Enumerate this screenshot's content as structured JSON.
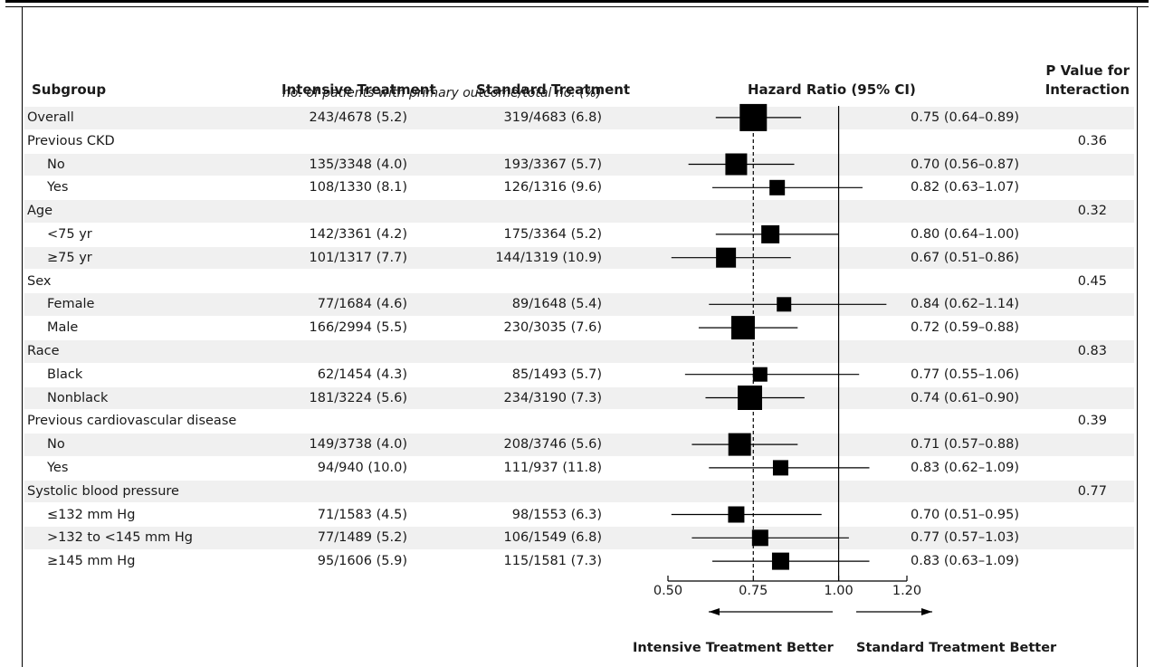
{
  "header": {
    "subgroup": "Subgroup",
    "intensive": "Intensive Treatment",
    "standard": "Standard Treatment",
    "hazard_ratio": "Hazard Ratio (95% CI)",
    "p_value_line1": "P Value for",
    "p_value_line2": "Interaction",
    "subheader": "no. of patients with primary outcome/total no. (%)"
  },
  "colors": {
    "shade": "#f0f0f0",
    "marker": "#000000"
  },
  "chart_data": {
    "type": "forest",
    "xlim": [
      0.5,
      1.2
    ],
    "reference_line": 1.0,
    "overall_line": 0.75,
    "x_ticks": [
      {
        "value": 0.5,
        "label": "0.50"
      },
      {
        "value": 0.75,
        "label": "0.75"
      },
      {
        "value": 1.0,
        "label": "1.00"
      },
      {
        "value": 1.2,
        "label": "1.20"
      }
    ],
    "favors_left": "Intensive Treatment Better",
    "favors_right": "Standard Treatment Better",
    "rows": [
      {
        "label": "Overall",
        "level": 0,
        "shaded": true,
        "intensive": "243/4678 (5.2)",
        "standard": "319/4683 (6.8)",
        "hr": 0.75,
        "lo": 0.64,
        "hi": 0.89,
        "hr_text": "0.75 (0.64–0.89)",
        "p": "",
        "size": 30
      },
      {
        "label": "Previous CKD",
        "level": 0,
        "shaded": false,
        "p": "0.36"
      },
      {
        "label": "No",
        "level": 1,
        "shaded": true,
        "intensive": "135/3348 (4.0)",
        "standard": "193/3367 (5.7)",
        "hr": 0.7,
        "lo": 0.56,
        "hi": 0.87,
        "hr_text": "0.70 (0.56–0.87)",
        "p": "",
        "size": 24
      },
      {
        "label": "Yes",
        "level": 1,
        "shaded": false,
        "intensive": "108/1330 (8.1)",
        "standard": "126/1316 (9.6)",
        "hr": 0.82,
        "lo": 0.63,
        "hi": 1.07,
        "hr_text": "0.82 (0.63–1.07)",
        "p": "",
        "size": 17
      },
      {
        "label": "Age",
        "level": 0,
        "shaded": true,
        "p": "0.32"
      },
      {
        "label": "<75 yr",
        "level": 1,
        "shaded": false,
        "intensive": "142/3361 (4.2)",
        "standard": "175/3364 (5.2)",
        "hr": 0.8,
        "lo": 0.64,
        "hi": 1.0,
        "hr_text": "0.80 (0.64–1.00)",
        "p": "",
        "size": 20
      },
      {
        "label": "≥75 yr",
        "level": 1,
        "shaded": true,
        "intensive": "101/1317 (7.7)",
        "standard": "144/1319 (10.9)",
        "hr": 0.67,
        "lo": 0.51,
        "hi": 0.86,
        "hr_text": "0.67 (0.51–0.86)",
        "p": "",
        "size": 22
      },
      {
        "label": "Sex",
        "level": 0,
        "shaded": false,
        "p": "0.45"
      },
      {
        "label": "Female",
        "level": 1,
        "shaded": true,
        "intensive": "77/1684 (4.6)",
        "standard": "89/1648 (5.4)",
        "hr": 0.84,
        "lo": 0.62,
        "hi": 1.14,
        "hr_text": "0.84 (0.62–1.14)",
        "p": "",
        "size": 16
      },
      {
        "label": "Male",
        "level": 1,
        "shaded": false,
        "intensive": "166/2994 (5.5)",
        "standard": "230/3035 (7.6)",
        "hr": 0.72,
        "lo": 0.59,
        "hi": 0.88,
        "hr_text": "0.72 (0.59–0.88)",
        "p": "",
        "size": 26
      },
      {
        "label": "Race",
        "level": 0,
        "shaded": true,
        "p": "0.83"
      },
      {
        "label": "Black",
        "level": 1,
        "shaded": false,
        "intensive": "62/1454 (4.3)",
        "standard": "85/1493 (5.7)",
        "hr": 0.77,
        "lo": 0.55,
        "hi": 1.06,
        "hr_text": "0.77 (0.55–1.06)",
        "p": "",
        "size": 16
      },
      {
        "label": "Nonblack",
        "level": 1,
        "shaded": true,
        "intensive": "181/3224 (5.6)",
        "standard": "234/3190 (7.3)",
        "hr": 0.74,
        "lo": 0.61,
        "hi": 0.9,
        "hr_text": "0.74 (0.61–0.90)",
        "p": "",
        "size": 27
      },
      {
        "label": "Previous cardiovascular disease",
        "level": 0,
        "shaded": false,
        "p": "0.39"
      },
      {
        "label": "No",
        "level": 1,
        "shaded": true,
        "intensive": "149/3738 (4.0)",
        "standard": "208/3746 (5.6)",
        "hr": 0.71,
        "lo": 0.57,
        "hi": 0.88,
        "hr_text": "0.71 (0.57–0.88)",
        "p": "",
        "size": 25
      },
      {
        "label": "Yes",
        "level": 1,
        "shaded": false,
        "intensive": "94/940 (10.0)",
        "standard": "111/937 (11.8)",
        "hr": 0.83,
        "lo": 0.62,
        "hi": 1.09,
        "hr_text": "0.83 (0.62–1.09)",
        "p": "",
        "size": 17
      },
      {
        "label": "Systolic blood pressure",
        "level": 0,
        "shaded": true,
        "p": "0.77"
      },
      {
        "label": "≤132 mm Hg",
        "level": 1,
        "shaded": false,
        "intensive": "71/1583 (4.5)",
        "standard": "98/1553 (6.3)",
        "hr": 0.7,
        "lo": 0.51,
        "hi": 0.95,
        "hr_text": "0.70 (0.51–0.95)",
        "p": "",
        "size": 18
      },
      {
        "label": ">132 to <145 mm Hg",
        "level": 1,
        "shaded": true,
        "intensive": "77/1489 (5.2)",
        "standard": "106/1549 (6.8)",
        "hr": 0.77,
        "lo": 0.57,
        "hi": 1.03,
        "hr_text": "0.77 (0.57–1.03)",
        "p": "",
        "size": 18
      },
      {
        "label": "≥145 mm Hg",
        "level": 1,
        "shaded": false,
        "intensive": "95/1606 (5.9)",
        "standard": "115/1581 (7.3)",
        "hr": 0.83,
        "lo": 0.63,
        "hi": 1.09,
        "hr_text": "0.83 (0.63–1.09)",
        "p": "",
        "size": 19
      }
    ]
  }
}
